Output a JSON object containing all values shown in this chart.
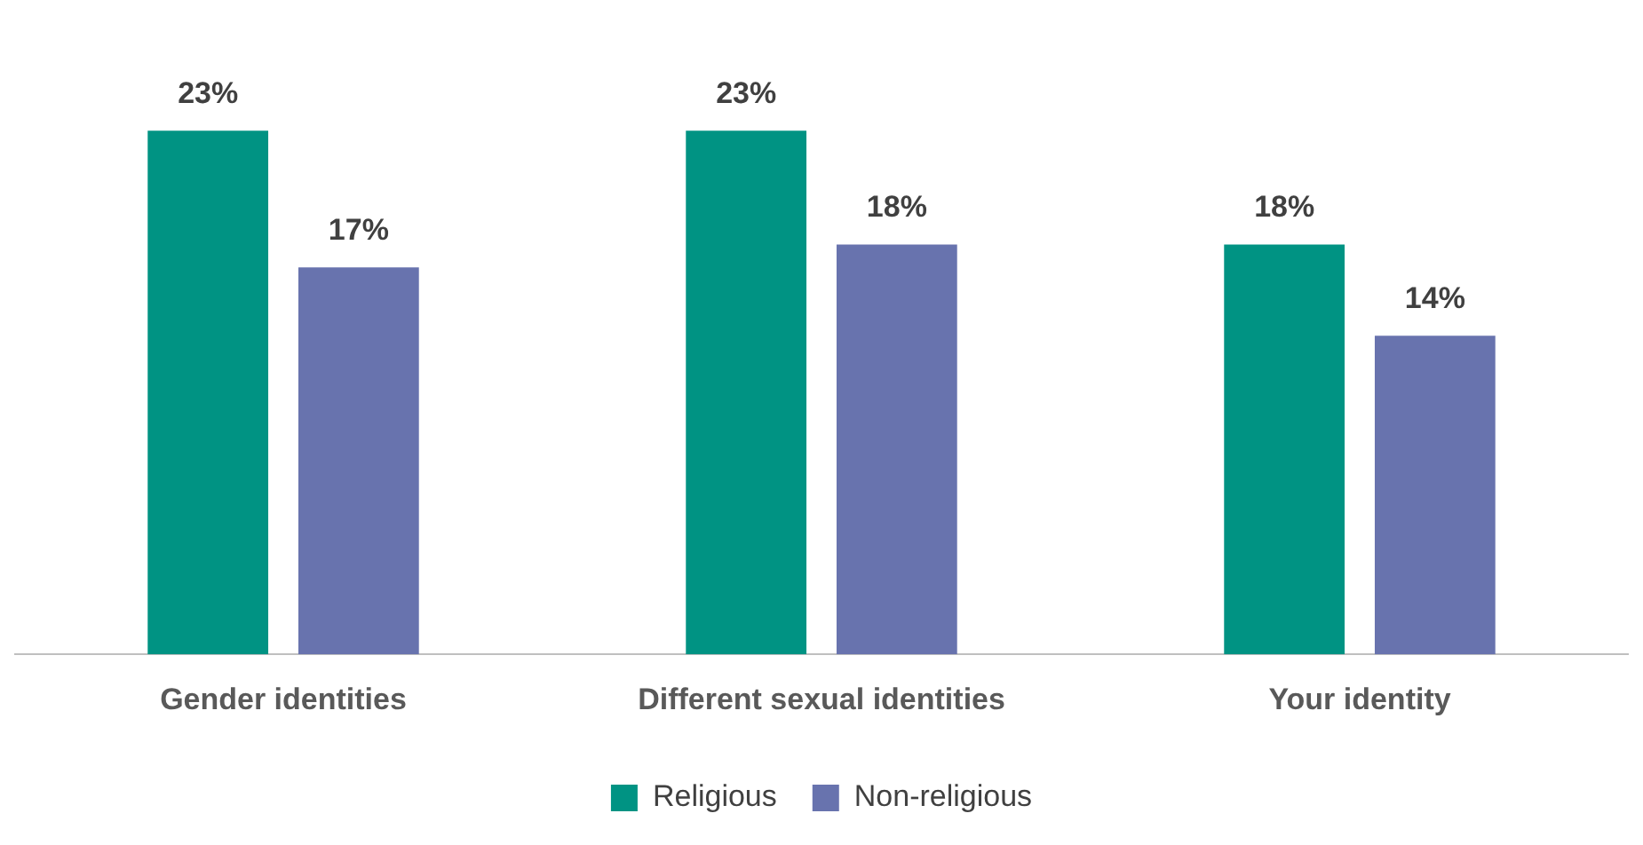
{
  "chart_data": {
    "type": "bar",
    "categories": [
      "Gender identities",
      "Different sexual identities",
      "Your identity"
    ],
    "series": [
      {
        "name": "Religious",
        "color": "#009383",
        "values": [
          23,
          23,
          18
        ],
        "value_labels": [
          "23%",
          "23%",
          "18%"
        ]
      },
      {
        "name": "Non-religious",
        "color": "#6873ae",
        "values": [
          17,
          18,
          14
        ],
        "value_labels": [
          "17%",
          "18%",
          "14%"
        ]
      }
    ],
    "legend": "bottom",
    "grid": false
  }
}
